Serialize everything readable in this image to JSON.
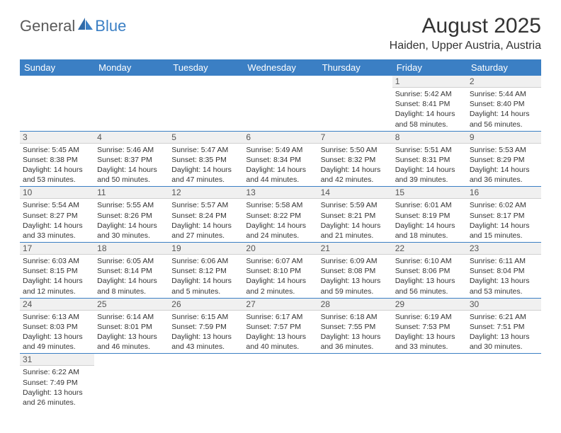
{
  "brand": {
    "part1": "General",
    "part2": "Blue"
  },
  "title": "August 2025",
  "location": "Haiden, Upper Austria, Austria",
  "dow": [
    "Sunday",
    "Monday",
    "Tuesday",
    "Wednesday",
    "Thursday",
    "Friday",
    "Saturday"
  ],
  "colors": {
    "header_bg": "#3b7fc4",
    "header_text": "#ffffff",
    "daynum_bg": "#f0f0f0",
    "row_divider": "#3b7fc4",
    "body_text": "#333333",
    "logo_gray": "#5a5a5a",
    "logo_blue": "#3b7fc4"
  },
  "weeks": [
    [
      null,
      null,
      null,
      null,
      null,
      {
        "n": "1",
        "sr": "Sunrise: 5:42 AM",
        "ss": "Sunset: 8:41 PM",
        "d1": "Daylight: 14 hours",
        "d2": "and 58 minutes."
      },
      {
        "n": "2",
        "sr": "Sunrise: 5:44 AM",
        "ss": "Sunset: 8:40 PM",
        "d1": "Daylight: 14 hours",
        "d2": "and 56 minutes."
      }
    ],
    [
      {
        "n": "3",
        "sr": "Sunrise: 5:45 AM",
        "ss": "Sunset: 8:38 PM",
        "d1": "Daylight: 14 hours",
        "d2": "and 53 minutes."
      },
      {
        "n": "4",
        "sr": "Sunrise: 5:46 AM",
        "ss": "Sunset: 8:37 PM",
        "d1": "Daylight: 14 hours",
        "d2": "and 50 minutes."
      },
      {
        "n": "5",
        "sr": "Sunrise: 5:47 AM",
        "ss": "Sunset: 8:35 PM",
        "d1": "Daylight: 14 hours",
        "d2": "and 47 minutes."
      },
      {
        "n": "6",
        "sr": "Sunrise: 5:49 AM",
        "ss": "Sunset: 8:34 PM",
        "d1": "Daylight: 14 hours",
        "d2": "and 44 minutes."
      },
      {
        "n": "7",
        "sr": "Sunrise: 5:50 AM",
        "ss": "Sunset: 8:32 PM",
        "d1": "Daylight: 14 hours",
        "d2": "and 42 minutes."
      },
      {
        "n": "8",
        "sr": "Sunrise: 5:51 AM",
        "ss": "Sunset: 8:31 PM",
        "d1": "Daylight: 14 hours",
        "d2": "and 39 minutes."
      },
      {
        "n": "9",
        "sr": "Sunrise: 5:53 AM",
        "ss": "Sunset: 8:29 PM",
        "d1": "Daylight: 14 hours",
        "d2": "and 36 minutes."
      }
    ],
    [
      {
        "n": "10",
        "sr": "Sunrise: 5:54 AM",
        "ss": "Sunset: 8:27 PM",
        "d1": "Daylight: 14 hours",
        "d2": "and 33 minutes."
      },
      {
        "n": "11",
        "sr": "Sunrise: 5:55 AM",
        "ss": "Sunset: 8:26 PM",
        "d1": "Daylight: 14 hours",
        "d2": "and 30 minutes."
      },
      {
        "n": "12",
        "sr": "Sunrise: 5:57 AM",
        "ss": "Sunset: 8:24 PM",
        "d1": "Daylight: 14 hours",
        "d2": "and 27 minutes."
      },
      {
        "n": "13",
        "sr": "Sunrise: 5:58 AM",
        "ss": "Sunset: 8:22 PM",
        "d1": "Daylight: 14 hours",
        "d2": "and 24 minutes."
      },
      {
        "n": "14",
        "sr": "Sunrise: 5:59 AM",
        "ss": "Sunset: 8:21 PM",
        "d1": "Daylight: 14 hours",
        "d2": "and 21 minutes."
      },
      {
        "n": "15",
        "sr": "Sunrise: 6:01 AM",
        "ss": "Sunset: 8:19 PM",
        "d1": "Daylight: 14 hours",
        "d2": "and 18 minutes."
      },
      {
        "n": "16",
        "sr": "Sunrise: 6:02 AM",
        "ss": "Sunset: 8:17 PM",
        "d1": "Daylight: 14 hours",
        "d2": "and 15 minutes."
      }
    ],
    [
      {
        "n": "17",
        "sr": "Sunrise: 6:03 AM",
        "ss": "Sunset: 8:15 PM",
        "d1": "Daylight: 14 hours",
        "d2": "and 12 minutes."
      },
      {
        "n": "18",
        "sr": "Sunrise: 6:05 AM",
        "ss": "Sunset: 8:14 PM",
        "d1": "Daylight: 14 hours",
        "d2": "and 8 minutes."
      },
      {
        "n": "19",
        "sr": "Sunrise: 6:06 AM",
        "ss": "Sunset: 8:12 PM",
        "d1": "Daylight: 14 hours",
        "d2": "and 5 minutes."
      },
      {
        "n": "20",
        "sr": "Sunrise: 6:07 AM",
        "ss": "Sunset: 8:10 PM",
        "d1": "Daylight: 14 hours",
        "d2": "and 2 minutes."
      },
      {
        "n": "21",
        "sr": "Sunrise: 6:09 AM",
        "ss": "Sunset: 8:08 PM",
        "d1": "Daylight: 13 hours",
        "d2": "and 59 minutes."
      },
      {
        "n": "22",
        "sr": "Sunrise: 6:10 AM",
        "ss": "Sunset: 8:06 PM",
        "d1": "Daylight: 13 hours",
        "d2": "and 56 minutes."
      },
      {
        "n": "23",
        "sr": "Sunrise: 6:11 AM",
        "ss": "Sunset: 8:04 PM",
        "d1": "Daylight: 13 hours",
        "d2": "and 53 minutes."
      }
    ],
    [
      {
        "n": "24",
        "sr": "Sunrise: 6:13 AM",
        "ss": "Sunset: 8:03 PM",
        "d1": "Daylight: 13 hours",
        "d2": "and 49 minutes."
      },
      {
        "n": "25",
        "sr": "Sunrise: 6:14 AM",
        "ss": "Sunset: 8:01 PM",
        "d1": "Daylight: 13 hours",
        "d2": "and 46 minutes."
      },
      {
        "n": "26",
        "sr": "Sunrise: 6:15 AM",
        "ss": "Sunset: 7:59 PM",
        "d1": "Daylight: 13 hours",
        "d2": "and 43 minutes."
      },
      {
        "n": "27",
        "sr": "Sunrise: 6:17 AM",
        "ss": "Sunset: 7:57 PM",
        "d1": "Daylight: 13 hours",
        "d2": "and 40 minutes."
      },
      {
        "n": "28",
        "sr": "Sunrise: 6:18 AM",
        "ss": "Sunset: 7:55 PM",
        "d1": "Daylight: 13 hours",
        "d2": "and 36 minutes."
      },
      {
        "n": "29",
        "sr": "Sunrise: 6:19 AM",
        "ss": "Sunset: 7:53 PM",
        "d1": "Daylight: 13 hours",
        "d2": "and 33 minutes."
      },
      {
        "n": "30",
        "sr": "Sunrise: 6:21 AM",
        "ss": "Sunset: 7:51 PM",
        "d1": "Daylight: 13 hours",
        "d2": "and 30 minutes."
      }
    ],
    [
      {
        "n": "31",
        "sr": "Sunrise: 6:22 AM",
        "ss": "Sunset: 7:49 PM",
        "d1": "Daylight: 13 hours",
        "d2": "and 26 minutes."
      },
      null,
      null,
      null,
      null,
      null,
      null
    ]
  ]
}
